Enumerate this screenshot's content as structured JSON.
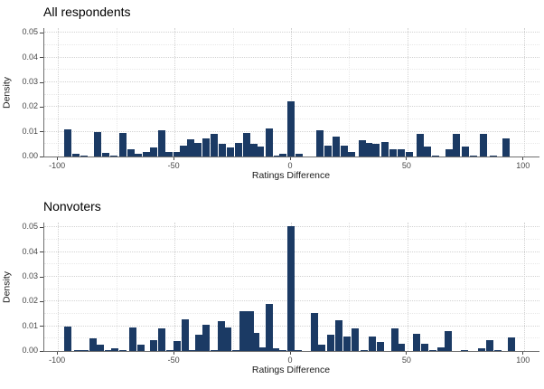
{
  "style": {
    "bar_color": "#1b3a64",
    "grid_major_color": "#d2d2d2",
    "grid_minor_color": "#e8e8e8",
    "axis_color": "#6f6f6f",
    "background": "#ffffff"
  },
  "chart_data": [
    {
      "type": "bar",
      "title": "All respondents",
      "xlabel": "Ratings Difference",
      "ylabel": "Density",
      "xlim": [
        -106,
        106
      ],
      "ylim": [
        0,
        0.052
      ],
      "grid": "dotted",
      "legend": "none",
      "bin_width_units": 3.2,
      "x_ticks": [
        {
          "v": -100,
          "label": "-100"
        },
        {
          "v": -50,
          "label": "-50"
        },
        {
          "v": 0,
          "label": "0"
        },
        {
          "v": 50,
          "label": "50"
        },
        {
          "v": 100,
          "label": "100"
        }
      ],
      "y_ticks": [
        {
          "v": 0,
          "label": "0.00"
        },
        {
          "v": 0.01,
          "label": "0.01"
        },
        {
          "v": 0.02,
          "label": "0.02"
        },
        {
          "v": 0.03,
          "label": "0.03"
        },
        {
          "v": 0.04,
          "label": "0.04"
        },
        {
          "v": 0.05,
          "label": "0.05"
        }
      ],
      "x_minor": [
        -75,
        -25,
        25,
        75
      ],
      "y_minor": [
        0.005,
        0.015,
        0.025,
        0.035,
        0.045
      ],
      "bars": [
        [
          -96,
          0.011
        ],
        [
          -92.5,
          0.001
        ],
        [
          -89,
          0.0005
        ],
        [
          -83,
          0.01
        ],
        [
          -79.5,
          0.0015
        ],
        [
          -76,
          0.0005
        ],
        [
          -72,
          0.0095
        ],
        [
          -68.5,
          0.003
        ],
        [
          -65.5,
          0.001
        ],
        [
          -62,
          0.002
        ],
        [
          -59,
          0.0035
        ],
        [
          -55.5,
          0.0105
        ],
        [
          -52.5,
          0.002
        ],
        [
          -49,
          0.002
        ],
        [
          -46,
          0.0045
        ],
        [
          -43,
          0.007
        ],
        [
          -40,
          0.0055
        ],
        [
          -36.5,
          0.0075
        ],
        [
          -33,
          0.009
        ],
        [
          -29.5,
          0.005
        ],
        [
          -26,
          0.0035
        ],
        [
          -22.5,
          0.0055
        ],
        [
          -19,
          0.0095
        ],
        [
          -16,
          0.005
        ],
        [
          -13,
          0.004
        ],
        [
          -9.5,
          0.0115
        ],
        [
          -6,
          0.0005
        ],
        [
          -3.5,
          0.001
        ],
        [
          0,
          0.0225
        ],
        [
          3.5,
          0.001
        ],
        [
          12.5,
          0.0105
        ],
        [
          16,
          0.0045
        ],
        [
          19.5,
          0.008
        ],
        [
          23,
          0.0045
        ],
        [
          26,
          0.002
        ],
        [
          30.5,
          0.0065
        ],
        [
          33.5,
          0.0055
        ],
        [
          36.5,
          0.005
        ],
        [
          40.5,
          0.006
        ],
        [
          44,
          0.003
        ],
        [
          47.5,
          0.003
        ],
        [
          51,
          0.002
        ],
        [
          55.5,
          0.009
        ],
        [
          58.5,
          0.004
        ],
        [
          62,
          0.0005
        ],
        [
          68,
          0.003
        ],
        [
          71,
          0.009
        ],
        [
          75,
          0.004
        ],
        [
          78.5,
          0.0005
        ],
        [
          82.5,
          0.009
        ],
        [
          87,
          0.0005
        ],
        [
          92.5,
          0.0075
        ]
      ]
    },
    {
      "type": "bar",
      "title": "Nonvoters",
      "xlabel": "Ratings Difference",
      "ylabel": "Density",
      "xlim": [
        -106,
        106
      ],
      "ylim": [
        0,
        0.052
      ],
      "grid": "dotted",
      "legend": "none",
      "bin_width_units": 3.2,
      "x_ticks": [
        {
          "v": -100,
          "label": "-100"
        },
        {
          "v": -50,
          "label": "-50"
        },
        {
          "v": 0,
          "label": "0"
        },
        {
          "v": 50,
          "label": "50"
        },
        {
          "v": 100,
          "label": "100"
        }
      ],
      "y_ticks": [
        {
          "v": 0,
          "label": "0.00"
        },
        {
          "v": 0.01,
          "label": "0.01"
        },
        {
          "v": 0.02,
          "label": "0.02"
        },
        {
          "v": 0.03,
          "label": "0.03"
        },
        {
          "v": 0.04,
          "label": "0.04"
        },
        {
          "v": 0.05,
          "label": "0.05"
        }
      ],
      "x_minor": [
        -75,
        -25,
        25,
        75
      ],
      "y_minor": [
        0.005,
        0.015,
        0.025,
        0.035,
        0.045
      ],
      "bars": [
        [
          -96,
          0.01
        ],
        [
          -91.5,
          0.0005
        ],
        [
          -88.5,
          0.0005
        ],
        [
          -85,
          0.005
        ],
        [
          -82,
          0.0025
        ],
        [
          -78.5,
          0.0005
        ],
        [
          -75.5,
          0.001
        ],
        [
          -72,
          0.0005
        ],
        [
          -68,
          0.0095
        ],
        [
          -64.5,
          0.0025
        ],
        [
          -59,
          0.0045
        ],
        [
          -55.5,
          0.009
        ],
        [
          -52,
          0.0005
        ],
        [
          -49,
          0.004
        ],
        [
          -45.5,
          0.013
        ],
        [
          -42.5,
          0.0005
        ],
        [
          -39.5,
          0.0065
        ],
        [
          -36.5,
          0.0105
        ],
        [
          -33,
          0.0005
        ],
        [
          -30,
          0.012
        ],
        [
          -27,
          0.0095
        ],
        [
          -23.5,
          0.0005
        ],
        [
          -20.5,
          0.016
        ],
        [
          -17.5,
          0.016
        ],
        [
          -15,
          0.0075
        ],
        [
          -12,
          0.0015
        ],
        [
          -9.5,
          0.019
        ],
        [
          -6.5,
          0.001
        ],
        [
          -3.5,
          0.0005
        ],
        [
          0,
          0.0505
        ],
        [
          3,
          0.0005
        ],
        [
          10,
          0.0155
        ],
        [
          13,
          0.0025
        ],
        [
          17,
          0.0065
        ],
        [
          20.5,
          0.0125
        ],
        [
          24,
          0.006
        ],
        [
          27.5,
          0.009
        ],
        [
          31.5,
          0.0005
        ],
        [
          35,
          0.006
        ],
        [
          38.5,
          0.0035
        ],
        [
          44.5,
          0.009
        ],
        [
          47.5,
          0.003
        ],
        [
          54,
          0.007
        ],
        [
          57.5,
          0.003
        ],
        [
          61,
          0.0005
        ],
        [
          64.5,
          0.0015
        ],
        [
          67.5,
          0.008
        ],
        [
          74.5,
          0.0005
        ],
        [
          82,
          0.001
        ],
        [
          85.5,
          0.0045
        ],
        [
          89,
          0.0005
        ],
        [
          94.5,
          0.0055
        ]
      ]
    }
  ]
}
